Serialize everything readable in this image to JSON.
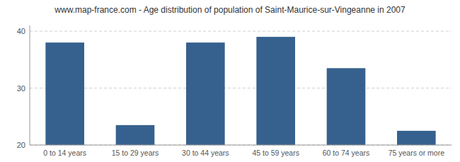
{
  "chart_data": {
    "type": "bar",
    "title": "www.map-france.com - Age distribution of population of Saint-Maurice-sur-Vingeanne in 2007",
    "categories": [
      "0 to 14 years",
      "15 to 29 years",
      "30 to 44 years",
      "45 to 59 years",
      "60 to 74 years",
      "75 years or more"
    ],
    "values": [
      38,
      23.5,
      38,
      39,
      33.5,
      22.5
    ],
    "color": "#36618e",
    "ylim": [
      20,
      41
    ],
    "yticks": [
      20,
      30,
      40
    ],
    "grid": true
  }
}
